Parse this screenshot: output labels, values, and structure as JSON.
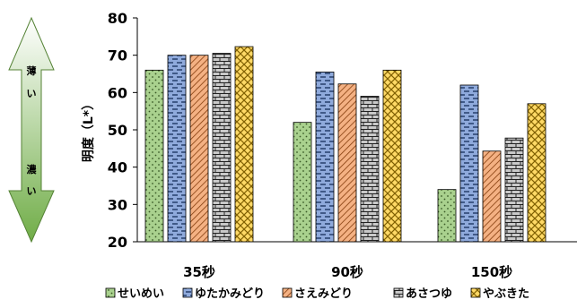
{
  "chart_data": {
    "type": "bar",
    "categories": [
      "35秒",
      "90秒",
      "150秒"
    ],
    "series": [
      {
        "name": "せいめい",
        "values": [
          66,
          52,
          34
        ],
        "color": "#a9d18e",
        "pattern": "dots"
      },
      {
        "name": "ゆたかみどり",
        "values": [
          70,
          65.5,
          62
        ],
        "color": "#8faadc",
        "pattern": "dashes"
      },
      {
        "name": "さえみどり",
        "values": [
          70,
          62.3,
          44.3
        ],
        "color": "#f4b183",
        "pattern": "diagonal-stripes"
      },
      {
        "name": "あさつゆ",
        "values": [
          70.5,
          59,
          47.8
        ],
        "color": "#c9c9c9",
        "pattern": "bricks"
      },
      {
        "name": "やぶきた",
        "values": [
          72.3,
          66,
          57
        ],
        "color": "#ffd966",
        "pattern": "crosshatch"
      }
    ],
    "ylabel": "明度（L*）",
    "ylim": [
      20,
      80
    ],
    "yticks": [
      "20",
      "30",
      "40",
      "50",
      "60",
      "70",
      "80"
    ],
    "grid": false,
    "legend_position": "bottom",
    "side_arrow": {
      "top_label": "薄い",
      "bottom_label": "濃い",
      "color": "#70ad47"
    }
  }
}
